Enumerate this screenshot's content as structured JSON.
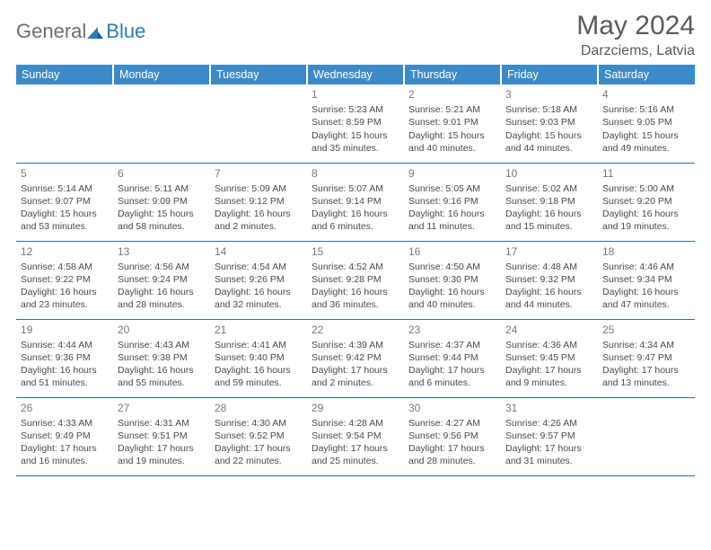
{
  "logo": {
    "text1": "General",
    "text2": "Blue"
  },
  "title": "May 2024",
  "location": "Darzciems, Latvia",
  "colors": {
    "header_bg": "#3b8bc9",
    "header_text": "#ffffff",
    "border": "#2d6ea8",
    "body_text": "#4a4a4a",
    "daynum": "#787878",
    "logo_gray": "#6e6e6e",
    "logo_blue": "#2b7bbd"
  },
  "weekdays": [
    "Sunday",
    "Monday",
    "Tuesday",
    "Wednesday",
    "Thursday",
    "Friday",
    "Saturday"
  ],
  "weeks": [
    [
      null,
      null,
      null,
      {
        "n": "1",
        "sr": "5:23 AM",
        "ss": "8:59 PM",
        "dl": "15 hours and 35 minutes."
      },
      {
        "n": "2",
        "sr": "5:21 AM",
        "ss": "9:01 PM",
        "dl": "15 hours and 40 minutes."
      },
      {
        "n": "3",
        "sr": "5:18 AM",
        "ss": "9:03 PM",
        "dl": "15 hours and 44 minutes."
      },
      {
        "n": "4",
        "sr": "5:16 AM",
        "ss": "9:05 PM",
        "dl": "15 hours and 49 minutes."
      }
    ],
    [
      {
        "n": "5",
        "sr": "5:14 AM",
        "ss": "9:07 PM",
        "dl": "15 hours and 53 minutes."
      },
      {
        "n": "6",
        "sr": "5:11 AM",
        "ss": "9:09 PM",
        "dl": "15 hours and 58 minutes."
      },
      {
        "n": "7",
        "sr": "5:09 AM",
        "ss": "9:12 PM",
        "dl": "16 hours and 2 minutes."
      },
      {
        "n": "8",
        "sr": "5:07 AM",
        "ss": "9:14 PM",
        "dl": "16 hours and 6 minutes."
      },
      {
        "n": "9",
        "sr": "5:05 AM",
        "ss": "9:16 PM",
        "dl": "16 hours and 11 minutes."
      },
      {
        "n": "10",
        "sr": "5:02 AM",
        "ss": "9:18 PM",
        "dl": "16 hours and 15 minutes."
      },
      {
        "n": "11",
        "sr": "5:00 AM",
        "ss": "9:20 PM",
        "dl": "16 hours and 19 minutes."
      }
    ],
    [
      {
        "n": "12",
        "sr": "4:58 AM",
        "ss": "9:22 PM",
        "dl": "16 hours and 23 minutes."
      },
      {
        "n": "13",
        "sr": "4:56 AM",
        "ss": "9:24 PM",
        "dl": "16 hours and 28 minutes."
      },
      {
        "n": "14",
        "sr": "4:54 AM",
        "ss": "9:26 PM",
        "dl": "16 hours and 32 minutes."
      },
      {
        "n": "15",
        "sr": "4:52 AM",
        "ss": "9:28 PM",
        "dl": "16 hours and 36 minutes."
      },
      {
        "n": "16",
        "sr": "4:50 AM",
        "ss": "9:30 PM",
        "dl": "16 hours and 40 minutes."
      },
      {
        "n": "17",
        "sr": "4:48 AM",
        "ss": "9:32 PM",
        "dl": "16 hours and 44 minutes."
      },
      {
        "n": "18",
        "sr": "4:46 AM",
        "ss": "9:34 PM",
        "dl": "16 hours and 47 minutes."
      }
    ],
    [
      {
        "n": "19",
        "sr": "4:44 AM",
        "ss": "9:36 PM",
        "dl": "16 hours and 51 minutes."
      },
      {
        "n": "20",
        "sr": "4:43 AM",
        "ss": "9:38 PM",
        "dl": "16 hours and 55 minutes."
      },
      {
        "n": "21",
        "sr": "4:41 AM",
        "ss": "9:40 PM",
        "dl": "16 hours and 59 minutes."
      },
      {
        "n": "22",
        "sr": "4:39 AM",
        "ss": "9:42 PM",
        "dl": "17 hours and 2 minutes."
      },
      {
        "n": "23",
        "sr": "4:37 AM",
        "ss": "9:44 PM",
        "dl": "17 hours and 6 minutes."
      },
      {
        "n": "24",
        "sr": "4:36 AM",
        "ss": "9:45 PM",
        "dl": "17 hours and 9 minutes."
      },
      {
        "n": "25",
        "sr": "4:34 AM",
        "ss": "9:47 PM",
        "dl": "17 hours and 13 minutes."
      }
    ],
    [
      {
        "n": "26",
        "sr": "4:33 AM",
        "ss": "9:49 PM",
        "dl": "17 hours and 16 minutes."
      },
      {
        "n": "27",
        "sr": "4:31 AM",
        "ss": "9:51 PM",
        "dl": "17 hours and 19 minutes."
      },
      {
        "n": "28",
        "sr": "4:30 AM",
        "ss": "9:52 PM",
        "dl": "17 hours and 22 minutes."
      },
      {
        "n": "29",
        "sr": "4:28 AM",
        "ss": "9:54 PM",
        "dl": "17 hours and 25 minutes."
      },
      {
        "n": "30",
        "sr": "4:27 AM",
        "ss": "9:56 PM",
        "dl": "17 hours and 28 minutes."
      },
      {
        "n": "31",
        "sr": "4:26 AM",
        "ss": "9:57 PM",
        "dl": "17 hours and 31 minutes."
      },
      null
    ]
  ],
  "labels": {
    "sunrise": "Sunrise:",
    "sunset": "Sunset:",
    "daylight": "Daylight:"
  }
}
